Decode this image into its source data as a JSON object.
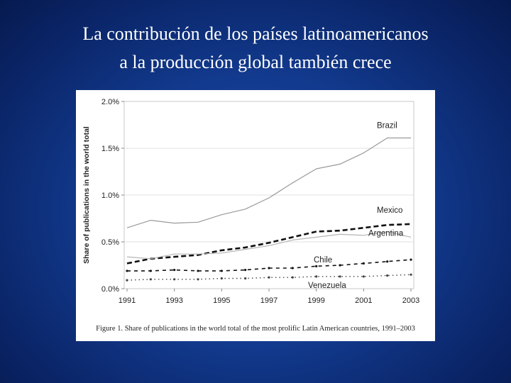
{
  "slide": {
    "title_line1": "La contribución de los países latinoamericanos",
    "title_line2": "a la producción global también crece",
    "background_color": "#123a8e"
  },
  "figure": {
    "caption": "Figure 1. Share of publications in the world total of the most prolific Latin American countries, 1991–2003"
  },
  "chart_data": {
    "type": "line",
    "title": "",
    "xlabel": "",
    "ylabel": "Share of publications in the world total",
    "x": [
      1991,
      1992,
      1993,
      1994,
      1995,
      1996,
      1997,
      1998,
      1999,
      2000,
      2001,
      2002,
      2003
    ],
    "x_ticks": [
      "1991",
      "1993",
      "1995",
      "1997",
      "1999",
      "2001",
      "2003"
    ],
    "y_ticks": [
      "0.0%",
      "0.5%",
      "1.0%",
      "1.5%",
      "2.0%"
    ],
    "ylim": [
      0,
      2.0
    ],
    "grid": true,
    "legend": "inline labels",
    "series": [
      {
        "name": "Brazil",
        "style": "solid-thin",
        "color": "#9a9a9a",
        "values": [
          0.65,
          0.73,
          0.7,
          0.71,
          0.79,
          0.85,
          0.97,
          1.13,
          1.28,
          1.33,
          1.45,
          1.61,
          1.61
        ]
      },
      {
        "name": "Mexico",
        "style": "dashed-thick",
        "color": "#111111",
        "values": [
          0.27,
          0.32,
          0.34,
          0.36,
          0.41,
          0.44,
          0.49,
          0.55,
          0.61,
          0.62,
          0.65,
          0.68,
          0.69
        ]
      },
      {
        "name": "Argentina",
        "style": "solid-thin",
        "color": "#b5b5b5",
        "values": [
          0.34,
          0.32,
          0.37,
          0.37,
          0.38,
          0.42,
          0.46,
          0.52,
          0.55,
          0.58,
          0.57,
          0.61,
          0.55
        ]
      },
      {
        "name": "Chile",
        "style": "dashed-medium",
        "color": "#111111",
        "values": [
          0.19,
          0.19,
          0.2,
          0.19,
          0.19,
          0.2,
          0.22,
          0.22,
          0.24,
          0.25,
          0.27,
          0.29,
          0.31
        ]
      },
      {
        "name": "Venezuela",
        "style": "dotted",
        "color": "#444444",
        "values": [
          0.09,
          0.1,
          0.1,
          0.1,
          0.11,
          0.11,
          0.12,
          0.12,
          0.13,
          0.13,
          0.13,
          0.14,
          0.15
        ]
      }
    ]
  }
}
